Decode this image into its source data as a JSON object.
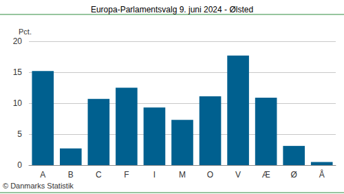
{
  "chart_data": {
    "type": "bar",
    "title": "Europa-Parlamentsvalg 9. juni 2024 - Ølsted",
    "ylabel": "Pct.",
    "categories": [
      "A",
      "B",
      "C",
      "F",
      "I",
      "M",
      "O",
      "V",
      "Æ",
      "Ø",
      "Å"
    ],
    "values": [
      15.2,
      2.7,
      10.7,
      12.5,
      9.3,
      7.3,
      11.1,
      17.7,
      10.9,
      3.1,
      0.5
    ],
    "color": "#00608f",
    "ylim": [
      0,
      20
    ],
    "yticks": [
      0,
      5,
      10,
      15,
      20
    ],
    "grid": true,
    "annotations": [
      "© Danmarks Statistik"
    ]
  }
}
